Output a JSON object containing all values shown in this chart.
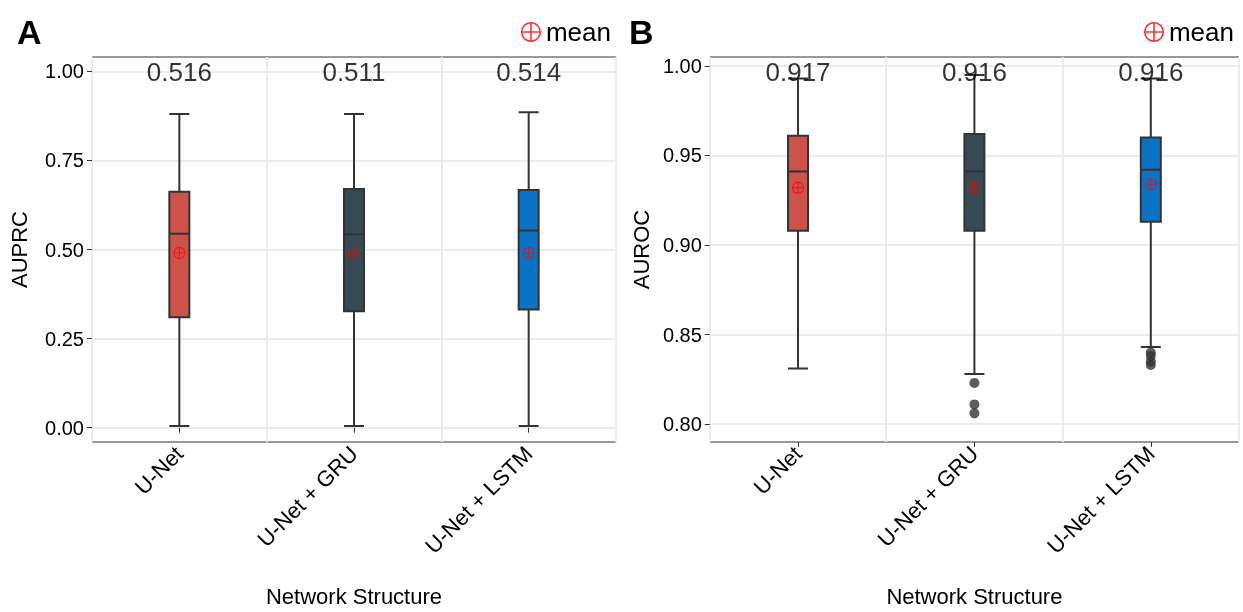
{
  "chart_data": [
    {
      "type": "box",
      "title": "A",
      "xlabel": "Network Structure",
      "ylabel": "AUPRC",
      "categories": [
        "U-Net",
        "U-Net + GRU",
        "U-Net + LSTM"
      ],
      "colors": [
        "#cd5249",
        "#354a52",
        "#0c73c4"
      ],
      "boxes": [
        {
          "low": 0.005,
          "q1": 0.31,
          "median": 0.544,
          "q3": 0.662,
          "high": 0.88
        },
        {
          "low": 0.005,
          "q1": 0.327,
          "median": 0.543,
          "q3": 0.67,
          "high": 0.88
        },
        {
          "low": 0.005,
          "q1": 0.332,
          "median": 0.553,
          "q3": 0.667,
          "high": 0.885
        }
      ],
      "series": [
        {
          "type": "scatter",
          "name": "mean",
          "color": "#ff0000",
          "x": [
            "U-Net",
            "U-Net + GRU",
            "U-Net + LSTM"
          ],
          "values": [
            0.49,
            0.487,
            0.49
          ]
        }
      ],
      "annotations": [
        "0.516",
        "0.511",
        "0.514"
      ],
      "ylim": [
        -0.04,
        1.04
      ],
      "yticks": [
        {
          "value": 0,
          "label": "0.00"
        },
        0.25,
        {
          "value": 0.5,
          "label": "0.50"
        },
        0.75,
        {
          "value": 1,
          "label": "1.00"
        }
      ],
      "grid": true,
      "legend": "top right",
      "marker": "circle"
    },
    {
      "type": "box",
      "title": "B",
      "xlabel": "Network Structure",
      "ylabel": "AUROC",
      "categories": [
        "U-Net",
        "U-Net + GRU",
        "U-Net + LSTM"
      ],
      "colors": [
        "#cd5249",
        "#354a52",
        "#0c73c4"
      ],
      "boxes": [
        {
          "low": 0.831,
          "q1": 0.908,
          "median": 0.941,
          "q3": 0.961,
          "high": 0.993
        },
        {
          "low": 0.828,
          "q1": 0.908,
          "median": 0.941,
          "q3": 0.962,
          "high": 0.995,
          "outliers": [
            0.823,
            0.811,
            0.806
          ]
        },
        {
          "low": 0.843,
          "q1": 0.913,
          "median": 0.942,
          "q3": 0.96,
          "high": 0.993,
          "outliers": [
            0.84,
            0.838,
            0.835,
            0.833
          ]
        }
      ],
      "series": [
        {
          "type": "scatter",
          "name": "mean",
          "color": "#ff0000",
          "x": [
            "U-Net",
            "U-Net + GRU",
            "U-Net + LSTM"
          ],
          "values": [
            0.932,
            0.932,
            0.934
          ]
        }
      ],
      "annotations": [
        "0.917",
        "0.916",
        "0.916"
      ],
      "ylim": [
        0.79,
        1.005
      ],
      "yticks": [
        {
          "value": 0.8,
          "label": "0.80"
        },
        0.85,
        {
          "value": 0.9,
          "label": "0.90"
        },
        0.95,
        {
          "value": 1,
          "label": "1.00"
        }
      ],
      "grid": true,
      "legend": "top right",
      "marker": "circle"
    }
  ]
}
